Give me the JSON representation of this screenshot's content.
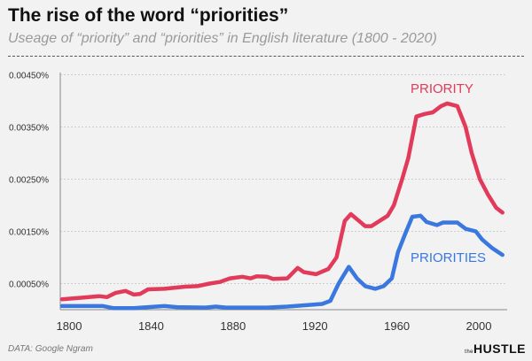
{
  "title": "The rise of the word “priorities”",
  "subtitle": "Useage of  “priority” and “priorities” in English literature (1800 - 2020)",
  "source": "DATA: Google Ngram",
  "logo": "the HUSTLE",
  "chart_data": {
    "type": "line",
    "title": "The rise of the word “priorities”",
    "xlabel": "",
    "ylabel": "",
    "xlim": [
      1800,
      2019
    ],
    "ylim": [
      0,
      0.0045
    ],
    "x_ticks": [
      "1800",
      "1840",
      "1880",
      "1920",
      "1960",
      "2000"
    ],
    "y_ticks": [
      "0.00450%",
      "0.00350%",
      "0.00250%",
      "0.00150%",
      "0.00050%"
    ],
    "y_tick_values": [
      0.0045,
      0.0035,
      0.0025,
      0.0015,
      0.0005
    ],
    "grid": true,
    "legend": "inline labels",
    "series": [
      {
        "name": "PRIORITY",
        "color": "#e23a5a",
        "points": [
          [
            1800,
            0.0002
          ],
          [
            1810,
            0.00023
          ],
          [
            1818,
            0.00026
          ],
          [
            1822,
            0.00024
          ],
          [
            1826,
            0.00032
          ],
          [
            1831,
            0.00036
          ],
          [
            1835,
            0.00029
          ],
          [
            1838,
            0.0003
          ],
          [
            1842,
            0.00039
          ],
          [
            1850,
            0.0004
          ],
          [
            1860,
            0.00044
          ],
          [
            1866,
            0.00045
          ],
          [
            1872,
            0.0005
          ],
          [
            1877,
            0.00053
          ],
          [
            1882,
            0.0006
          ],
          [
            1888,
            0.00063
          ],
          [
            1892,
            0.0006
          ],
          [
            1895,
            0.00064
          ],
          [
            1900,
            0.00063
          ],
          [
            1903,
            0.00059
          ],
          [
            1910,
            0.0006
          ],
          [
            1915,
            0.0008
          ],
          [
            1918,
            0.00072
          ],
          [
            1924,
            0.00068
          ],
          [
            1930,
            0.00078
          ],
          [
            1934,
            0.001
          ],
          [
            1938,
            0.0017
          ],
          [
            1941,
            0.00183
          ],
          [
            1945,
            0.0017
          ],
          [
            1948,
            0.0016
          ],
          [
            1951,
            0.0016
          ],
          [
            1955,
            0.0017
          ],
          [
            1959,
            0.0018
          ],
          [
            1962,
            0.002
          ],
          [
            1966,
            0.0025
          ],
          [
            1969,
            0.0029
          ],
          [
            1973,
            0.0037
          ],
          [
            1977,
            0.00375
          ],
          [
            1981,
            0.00378
          ],
          [
            1985,
            0.0039
          ],
          [
            1988,
            0.00395
          ],
          [
            1993,
            0.0039
          ],
          [
            1997,
            0.0035
          ],
          [
            2000,
            0.003
          ],
          [
            2004,
            0.0025
          ],
          [
            2008,
            0.0022
          ],
          [
            2012,
            0.00195
          ],
          [
            2015,
            0.00186
          ]
        ]
      },
      {
        "name": "PRIORITIES",
        "color": "#3a78e0",
        "points": [
          [
            1800,
            7e-05
          ],
          [
            1815,
            7e-05
          ],
          [
            1820,
            7e-05
          ],
          [
            1825,
            3e-05
          ],
          [
            1835,
            3e-05
          ],
          [
            1842,
            5e-05
          ],
          [
            1850,
            7e-05
          ],
          [
            1856,
            5e-05
          ],
          [
            1870,
            4e-05
          ],
          [
            1875,
            6e-05
          ],
          [
            1880,
            4e-05
          ],
          [
            1900,
            4e-05
          ],
          [
            1910,
            6e-05
          ],
          [
            1920,
            9e-05
          ],
          [
            1927,
            0.00011
          ],
          [
            1931,
            0.00017
          ],
          [
            1935,
            0.0005
          ],
          [
            1940,
            0.00082
          ],
          [
            1944,
            0.0006
          ],
          [
            1948,
            0.00045
          ],
          [
            1953,
            0.0004
          ],
          [
            1957,
            0.00045
          ],
          [
            1961,
            0.0006
          ],
          [
            1964,
            0.0011
          ],
          [
            1968,
            0.0015
          ],
          [
            1971,
            0.00178
          ],
          [
            1975,
            0.0018
          ],
          [
            1978,
            0.00168
          ],
          [
            1983,
            0.00162
          ],
          [
            1986,
            0.00167
          ],
          [
            1993,
            0.00167
          ],
          [
            1997,
            0.00155
          ],
          [
            2002,
            0.0015
          ],
          [
            2005,
            0.00135
          ],
          [
            2010,
            0.00118
          ],
          [
            2015,
            0.00105
          ]
        ]
      }
    ]
  }
}
